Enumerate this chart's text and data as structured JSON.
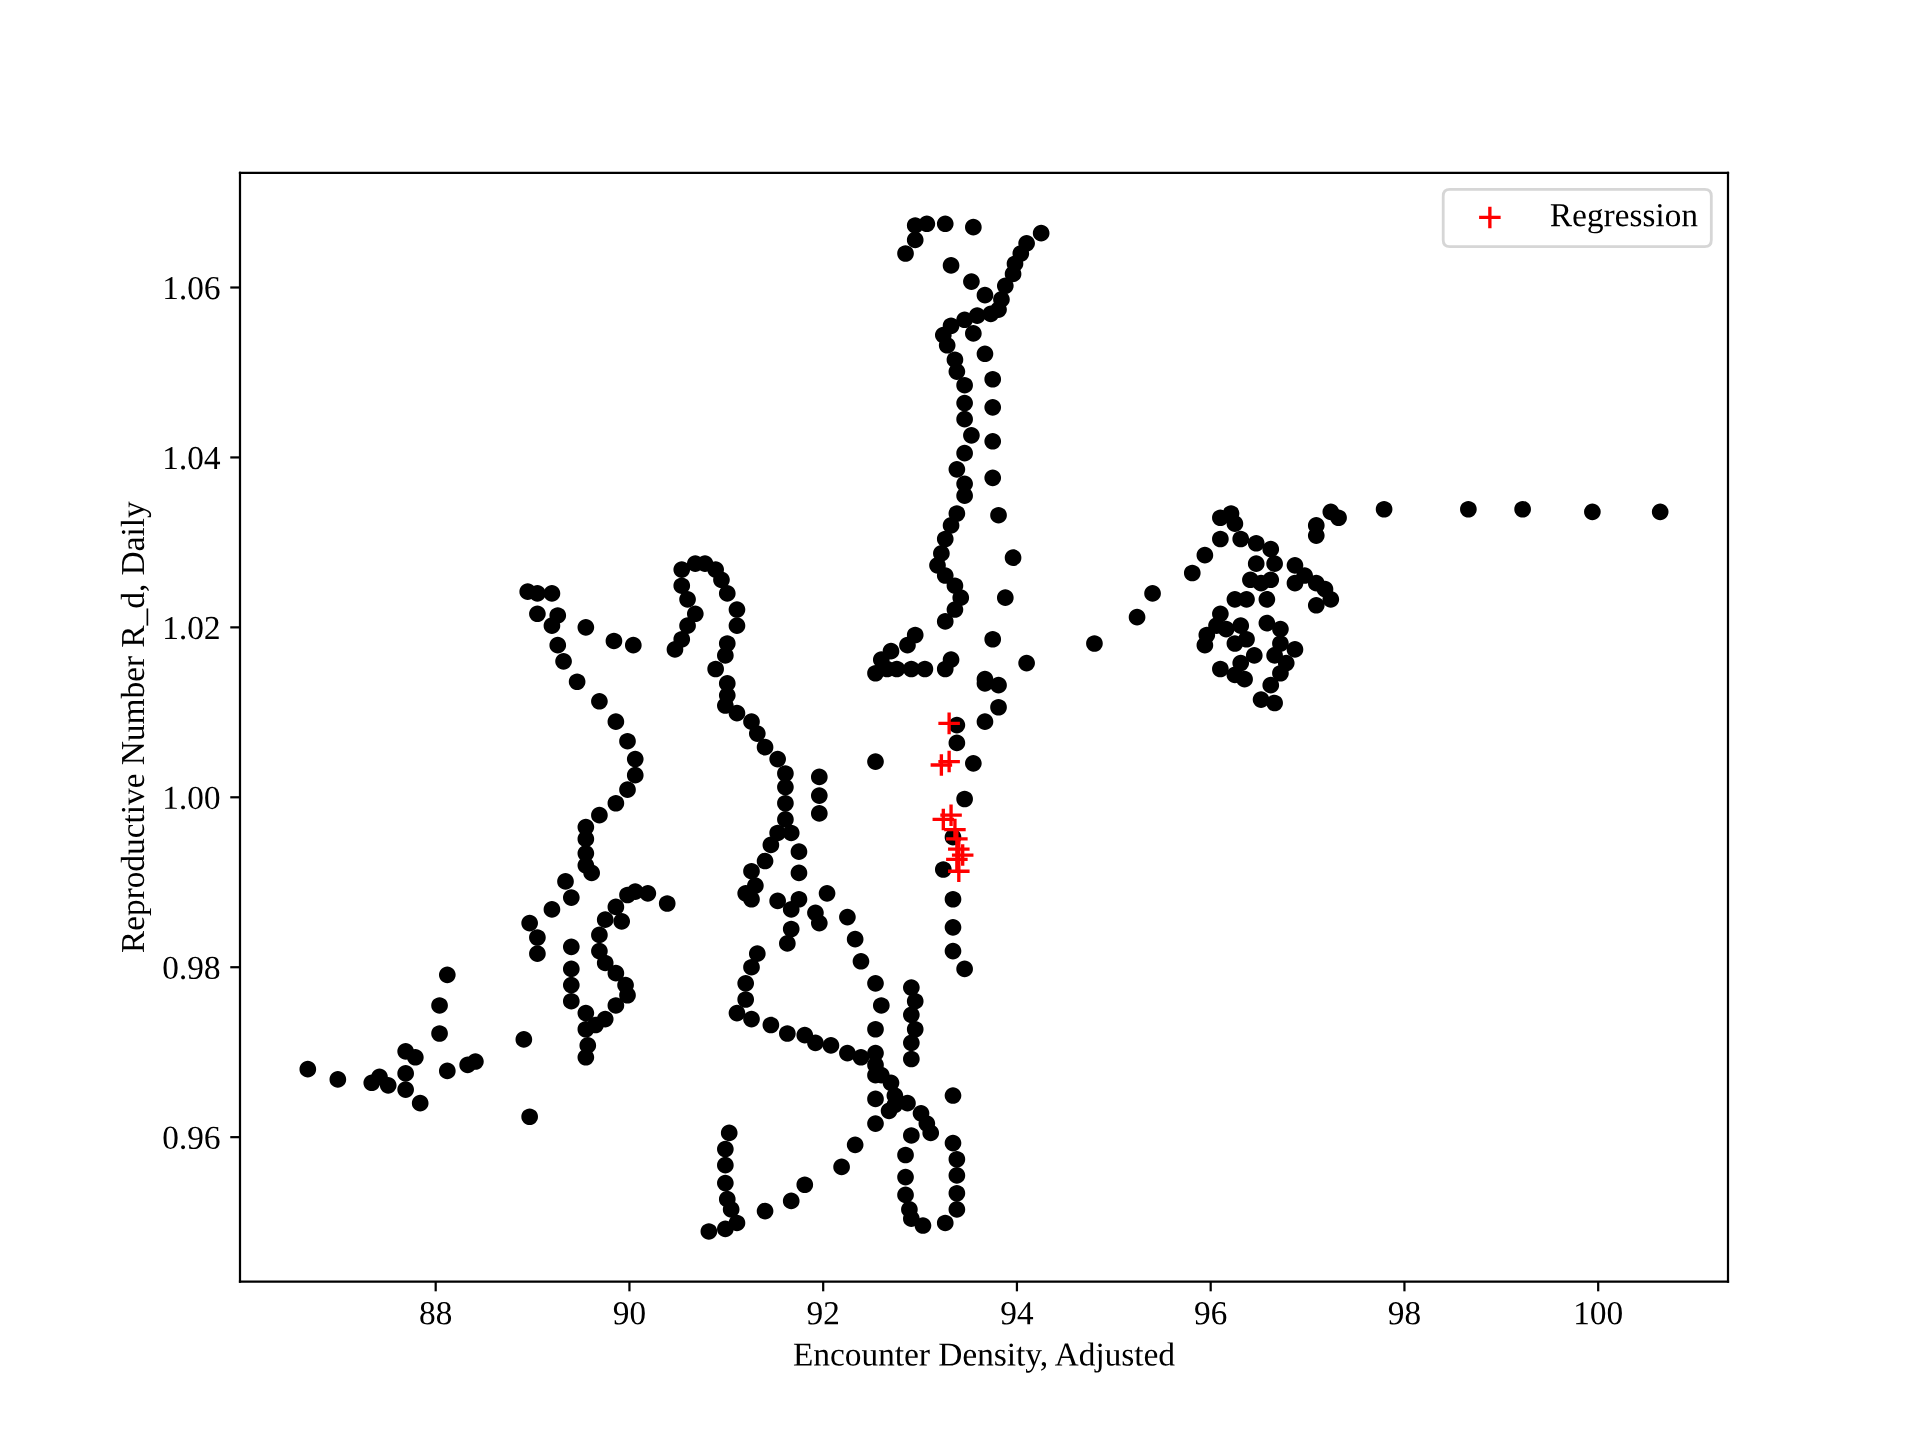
{
  "chart_data": {
    "type": "scatter",
    "xlabel": "Encounter Density, Adjusted",
    "ylabel": "Reproductive Number R_d, Daily",
    "xlim": [
      85.98,
      101.34
    ],
    "ylim": [
      0.943,
      1.0735
    ],
    "xticks": [
      88,
      90,
      92,
      94,
      96,
      98,
      100
    ],
    "yticks": [
      0.96,
      0.98,
      {
        "value": 1.0,
        "label": "1.00"
      },
      1.02,
      1.04,
      1.06
    ],
    "legend": "top right",
    "series": [
      {
        "color": "#000000",
        "marker": "circle",
        "x": [
          86.68,
          86.99,
          87.34,
          87.42,
          87.51,
          87.69,
          87.79,
          87.69,
          87.69,
          87.84,
          88.12,
          88.04,
          88.04,
          88.12,
          88.33,
          88.41,
          88.91,
          88.97,
          88.97,
          89.05,
          89.05,
          89.2,
          89.34,
          89.4,
          89.4,
          89.4,
          89.4,
          89.4,
          89.55,
          89.55,
          89.57,
          89.55,
          89.65,
          89.75,
          89.86,
          89.98,
          89.96,
          89.86,
          89.75,
          89.69,
          89.69,
          89.75,
          89.86,
          89.92,
          89.98,
          90.06,
          90.19,
          90.39,
          88.95,
          89.05,
          89.2,
          89.05,
          89.2,
          89.26,
          89.55,
          89.84,
          90.04,
          89.26,
          89.32,
          89.46,
          89.69,
          89.86,
          89.98,
          90.06,
          90.06,
          89.98,
          89.86,
          89.69,
          89.55,
          89.55,
          89.55,
          89.55,
          89.61,
          90.54,
          90.68,
          90.78,
          90.89,
          90.95,
          91.01,
          91.11,
          91.11,
          91.01,
          90.99,
          90.89,
          91.01,
          91.01,
          90.99,
          91.11,
          91.26,
          91.32,
          91.4,
          91.53,
          91.61,
          91.61,
          91.61,
          91.61,
          91.67,
          91.53,
          91.46,
          91.4,
          91.26,
          91.3,
          91.2,
          91.26,
          90.54,
          90.6,
          90.68,
          90.6,
          90.54,
          90.47,
          91.96,
          91.96,
          91.96,
          91.75,
          91.75,
          91.75,
          91.53,
          91.67,
          91.92,
          91.96,
          92.04,
          91.67,
          91.63,
          92.25,
          92.33,
          92.39,
          92.54,
          92.6,
          92.54,
          92.54,
          91.32,
          91.26,
          91.2,
          91.2,
          91.11,
          91.26,
          91.46,
          91.63,
          91.81,
          91.92,
          92.08,
          92.25,
          92.39,
          92.54,
          92.6,
          92.7,
          92.74,
          92.74,
          92.68,
          92.54,
          92.54,
          92.54,
          92.91,
          92.95,
          92.91,
          92.95,
          92.91,
          92.91,
          92.87,
          93.01,
          93.07,
          93.11,
          92.91,
          92.85,
          92.85,
          92.85,
          92.89,
          92.91,
          93.03,
          93.26,
          93.38,
          93.38,
          93.38,
          93.38,
          93.34,
          93.34,
          92.19,
          92.33,
          91.81,
          91.67,
          91.4,
          91.03,
          90.99,
          90.99,
          90.99,
          91.01,
          91.05,
          91.11,
          90.99,
          90.82,
          93.34,
          93.34,
          93.46,
          93.24,
          93.34,
          93.34,
          93.46,
          93.55,
          93.38,
          93.38,
          93.67,
          93.81,
          93.81,
          93.67,
          92.54,
          92.85,
          92.95,
          92.95,
          93.07,
          93.26,
          93.55,
          94.25,
          94.1,
          94.04,
          93.98,
          93.96,
          93.88,
          93.84,
          93.81,
          93.67,
          93.53,
          93.32,
          93.73,
          93.59,
          93.46,
          93.32,
          93.24,
          93.28,
          93.36,
          93.38,
          93.55,
          93.67,
          93.75,
          93.75,
          93.75,
          93.75,
          93.81,
          93.96,
          93.88,
          93.75,
          94.1,
          93.67,
          93.46,
          93.46,
          93.46,
          93.53,
          93.46,
          93.38,
          93.46,
          93.46,
          93.38,
          93.32,
          93.26,
          93.22,
          93.18,
          93.26,
          93.36,
          93.42,
          93.36,
          93.26,
          92.95,
          92.87,
          92.7,
          92.6,
          92.54,
          92.66,
          92.76,
          92.91,
          93.05,
          93.26,
          93.32,
          94.8,
          95.24,
          95.4,
          95.81,
          95.94,
          96.1,
          96.1,
          96.21,
          96.25,
          96.31,
          96.47,
          96.62,
          96.66,
          96.47,
          96.41,
          96.52,
          96.62,
          96.58,
          96.37,
          96.25,
          96.1,
          96.06,
          95.96,
          95.94,
          96.16,
          96.31,
          96.25,
          96.37,
          96.58,
          96.72,
          96.72,
          96.66,
          96.87,
          96.78,
          96.72,
          96.62,
          96.52,
          96.66,
          96.45,
          96.31,
          96.25,
          96.35,
          96.1,
          96.87,
          96.97,
          97.09,
          97.18,
          97.24,
          97.09,
          96.87,
          97.09,
          97.09,
          97.24,
          97.32,
          97.79,
          98.66,
          99.22,
          99.94,
          100.64
        ],
        "values": [
          0.968,
          0.9668,
          0.9664,
          0.9671,
          0.9661,
          0.9701,
          0.9694,
          0.9675,
          0.9656,
          0.964,
          0.9791,
          0.9755,
          0.9722,
          0.9678,
          0.9685,
          0.9689,
          0.9715,
          0.9624,
          0.9852,
          0.9835,
          0.9816,
          0.9868,
          0.9901,
          0.9882,
          0.9824,
          0.9798,
          0.9779,
          0.976,
          0.9746,
          0.9727,
          0.9708,
          0.9694,
          0.9732,
          0.9739,
          0.9755,
          0.9767,
          0.9779,
          0.9793,
          0.9805,
          0.9819,
          0.9838,
          0.9856,
          0.9871,
          0.9854,
          0.9885,
          0.9889,
          0.9887,
          0.9875,
          1.0242,
          1.024,
          1.024,
          1.0216,
          1.0202,
          1.0214,
          1.02,
          1.0184,
          1.0179,
          1.0179,
          1.016,
          1.0136,
          1.0113,
          1.0089,
          1.0066,
          1.0045,
          1.0026,
          1.0009,
          0.9993,
          0.9979,
          0.9965,
          0.9951,
          0.9934,
          0.992,
          0.9911,
          1.0268,
          1.0275,
          1.0275,
          1.0268,
          1.0256,
          1.024,
          1.0221,
          1.0202,
          1.0181,
          1.0167,
          1.0151,
          1.0134,
          1.012,
          1.0108,
          1.0099,
          1.0089,
          1.0075,
          1.0059,
          1.0045,
          1.0028,
          1.0012,
          0.9993,
          0.9974,
          0.9958,
          0.9958,
          0.9944,
          0.9925,
          0.9913,
          0.9896,
          0.9887,
          0.988,
          1.0249,
          1.0233,
          1.0216,
          1.0202,
          1.0186,
          1.0174,
          1.0024,
          1.0002,
          0.9981,
          0.9936,
          0.9911,
          0.988,
          0.9878,
          0.9868,
          0.9864,
          0.9852,
          0.9887,
          0.9845,
          0.9828,
          0.9859,
          0.9833,
          0.9807,
          0.9781,
          0.9755,
          0.9727,
          0.9699,
          0.9816,
          0.98,
          0.9781,
          0.9762,
          0.9746,
          0.9739,
          0.9732,
          0.9722,
          0.972,
          0.9711,
          0.9708,
          0.9699,
          0.9694,
          0.9685,
          0.9673,
          0.9664,
          0.9649,
          0.9638,
          0.9631,
          0.9673,
          0.9645,
          0.9616,
          0.9776,
          0.976,
          0.9744,
          0.9727,
          0.9711,
          0.9692,
          0.964,
          0.9628,
          0.9616,
          0.9605,
          0.9602,
          0.9579,
          0.9553,
          0.9532,
          0.9515,
          0.9504,
          0.9496,
          0.9499,
          0.9515,
          0.9534,
          0.9555,
          0.9574,
          0.9593,
          0.9649,
          0.9565,
          0.9591,
          0.9544,
          0.9525,
          0.9513,
          0.9605,
          0.9586,
          0.9567,
          0.9546,
          0.9527,
          0.9515,
          0.9499,
          0.9492,
          0.9489,
          0.9847,
          0.9819,
          0.9798,
          0.9915,
          0.988,
          0.9953,
          0.9998,
          1.004,
          1.0064,
          1.0085,
          1.0134,
          1.0132,
          1.0106,
          1.0089,
          1.0042,
          1.064,
          1.0656,
          1.0673,
          1.0675,
          1.0675,
          1.0671,
          1.0664,
          1.0652,
          1.064,
          1.0628,
          1.0616,
          1.0602,
          1.0586,
          1.0574,
          1.0591,
          1.0607,
          1.0626,
          1.0569,
          1.0567,
          1.0562,
          1.0555,
          1.0544,
          1.0532,
          1.0515,
          1.0501,
          1.0546,
          1.0522,
          1.0492,
          1.0459,
          1.0419,
          1.0376,
          1.0332,
          1.0282,
          1.0235,
          1.0186,
          1.0158,
          1.0139,
          1.0485,
          1.0464,
          1.0445,
          1.0426,
          1.0405,
          1.0386,
          1.0369,
          1.0355,
          1.0334,
          1.032,
          1.0304,
          1.0287,
          1.0273,
          1.0261,
          1.0249,
          1.0235,
          1.0221,
          1.0207,
          1.0191,
          1.0179,
          1.0172,
          1.0162,
          1.0146,
          1.0151,
          1.0151,
          1.0151,
          1.0151,
          1.0151,
          1.0162,
          1.0181,
          1.0212,
          1.024,
          1.0264,
          1.0285,
          1.0304,
          1.0329,
          1.0334,
          1.0322,
          1.0304,
          1.0299,
          1.0292,
          1.0275,
          1.0275,
          1.0256,
          1.0252,
          1.0256,
          1.0233,
          1.0233,
          1.0233,
          1.0216,
          1.0202,
          1.0191,
          1.0179,
          1.0198,
          1.0202,
          1.0181,
          1.0186,
          1.0205,
          1.0198,
          1.0181,
          1.0167,
          1.0174,
          1.0158,
          1.0146,
          1.0132,
          1.0115,
          1.0111,
          1.0167,
          1.0158,
          1.0144,
          1.0139,
          1.0151,
          1.0273,
          1.0261,
          1.0252,
          1.0245,
          1.0233,
          1.0226,
          1.0252,
          1.032,
          1.0308,
          1.0336,
          1.0329,
          1.0339,
          1.0339,
          1.0339,
          1.0336,
          1.0336
        ]
      },
      {
        "name": "Regression",
        "color": "#ff0000",
        "marker": "cross",
        "x": [
          93.3,
          93.22,
          93.3,
          93.24,
          93.32,
          93.36,
          93.38,
          93.4,
          93.38,
          93.44,
          93.4
        ],
        "values": [
          1.0087,
          1.0038,
          1.0042,
          0.9974,
          0.9979,
          0.9962,
          0.9951,
          0.9939,
          0.9927,
          0.9932,
          0.9913
        ]
      }
    ]
  }
}
